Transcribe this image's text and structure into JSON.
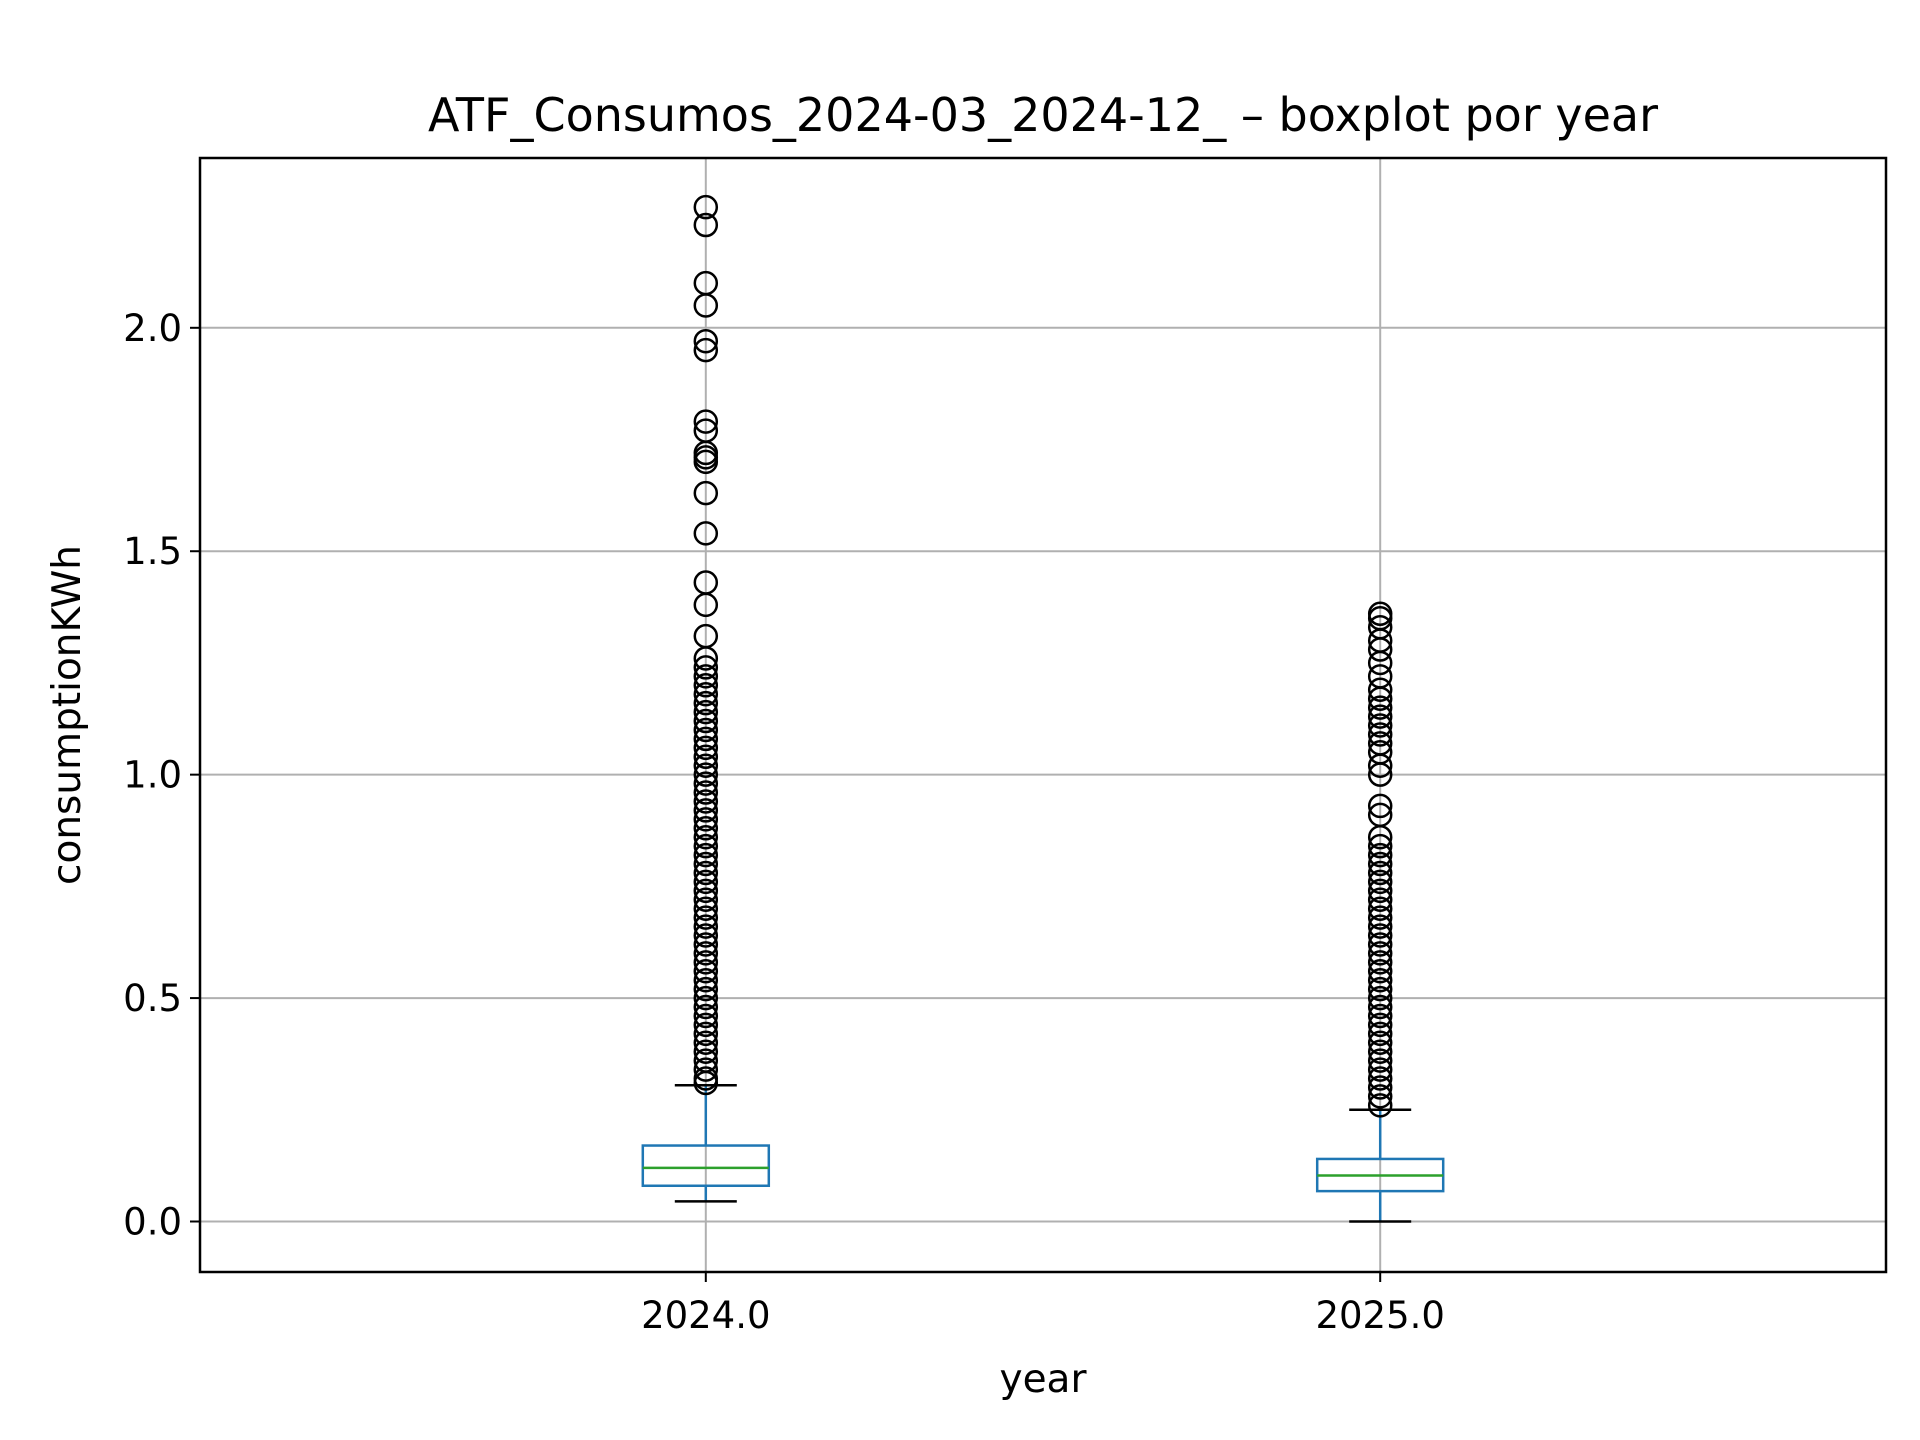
{
  "chart_data": {
    "type": "boxplot",
    "title": "ATF_Consumos_2024-03_2024-12_ – boxplot por year",
    "xlabel": "year",
    "ylabel": "consumptionKWh",
    "categories": [
      "2024.0",
      "2025.0"
    ],
    "ylim": [
      -0.113,
      2.38
    ],
    "yticks": [
      0.0,
      0.5,
      1.0,
      1.5,
      2.0
    ],
    "ytick_labels": [
      "0.0",
      "0.5",
      "1.0",
      "1.5",
      "2.0"
    ],
    "grid": true,
    "colors": {
      "box": "#1f77b4",
      "median": "#2ca02c",
      "whisker": "#1f77b4",
      "cap": "#000000",
      "flier": "#000000",
      "grid": "#b0b0b0"
    },
    "boxes": [
      {
        "name": "2024.0",
        "whisker_low": 0.045,
        "q1": 0.08,
        "median": 0.12,
        "q3": 0.17,
        "whisker_high": 0.305,
        "fliers": [
          2.27,
          2.23,
          2.1,
          2.05,
          1.97,
          1.95,
          1.79,
          1.77,
          1.72,
          1.71,
          1.7,
          1.63,
          1.54,
          1.43,
          1.38,
          1.31,
          1.26,
          1.24,
          1.22,
          1.2,
          1.18,
          1.16,
          1.14,
          1.12,
          1.1,
          1.08,
          1.06,
          1.04,
          1.02,
          1.0,
          0.98,
          0.96,
          0.94,
          0.92,
          0.9,
          0.88,
          0.86,
          0.84,
          0.82,
          0.8,
          0.78,
          0.76,
          0.74,
          0.72,
          0.7,
          0.68,
          0.66,
          0.64,
          0.62,
          0.6,
          0.58,
          0.56,
          0.54,
          0.52,
          0.5,
          0.48,
          0.46,
          0.44,
          0.42,
          0.4,
          0.38,
          0.36,
          0.34,
          0.32,
          0.31
        ]
      },
      {
        "name": "2025.0",
        "whisker_low": 0.0,
        "q1": 0.068,
        "median": 0.103,
        "q3": 0.14,
        "whisker_high": 0.25,
        "fliers": [
          1.36,
          1.35,
          1.33,
          1.3,
          1.28,
          1.25,
          1.22,
          1.19,
          1.17,
          1.15,
          1.13,
          1.11,
          1.09,
          1.07,
          1.05,
          1.02,
          1.0,
          0.93,
          0.91,
          0.86,
          0.84,
          0.82,
          0.8,
          0.78,
          0.76,
          0.74,
          0.72,
          0.7,
          0.68,
          0.66,
          0.64,
          0.62,
          0.6,
          0.58,
          0.56,
          0.54,
          0.52,
          0.5,
          0.48,
          0.46,
          0.44,
          0.42,
          0.4,
          0.38,
          0.36,
          0.34,
          0.32,
          0.3,
          0.28,
          0.26
        ]
      }
    ]
  }
}
